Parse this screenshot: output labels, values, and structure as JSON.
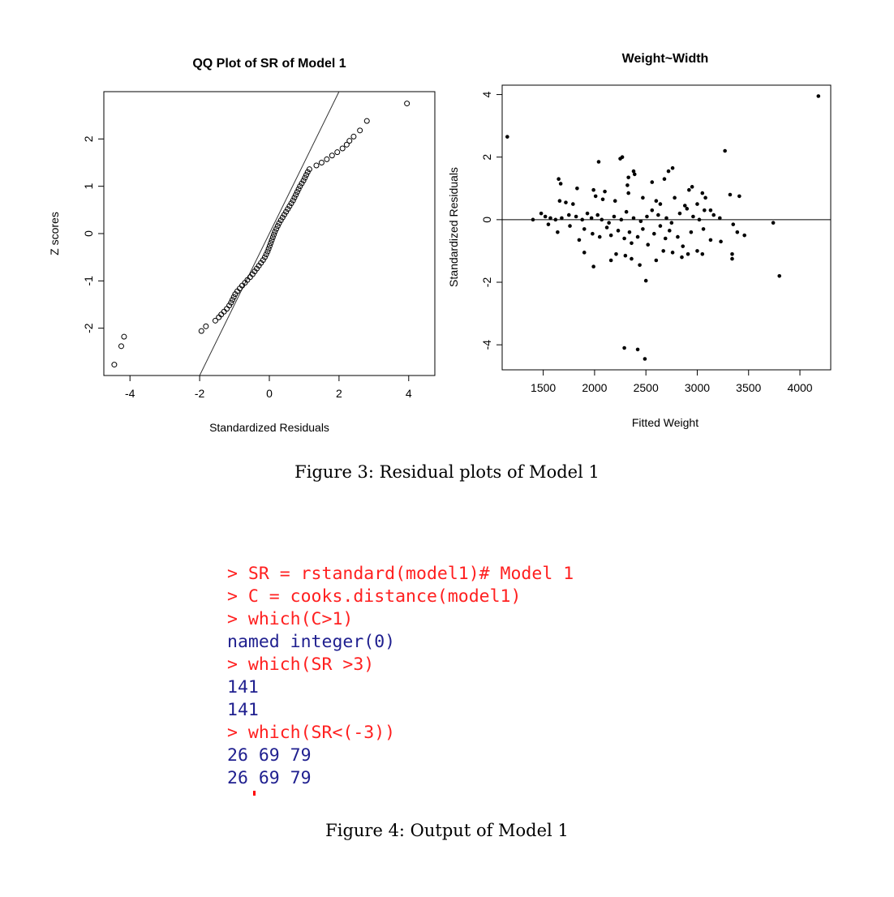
{
  "chart_data": [
    {
      "type": "scatter",
      "title": "QQ Plot of SR of Model 1",
      "xlabel": "Standardized Residuals",
      "ylabel": "Z scores",
      "xlim": [
        -4.75,
        4.75
      ],
      "ylim": [
        -3.0,
        3.0
      ],
      "xticks": [
        "-4",
        "-2",
        "0",
        "2",
        "4"
      ],
      "yticks": [
        "-2",
        "-1",
        "0",
        "1",
        "2"
      ],
      "marker": "open-circle",
      "reference_line": {
        "slope": 1.5,
        "intercept": 0
      },
      "points": [
        [
          -4.45,
          -2.77
        ],
        [
          -4.25,
          -2.38
        ],
        [
          -4.17,
          -2.18
        ],
        [
          -1.95,
          -2.06
        ],
        [
          -1.82,
          -1.96
        ],
        [
          -1.55,
          -1.84
        ],
        [
          -1.45,
          -1.77
        ],
        [
          -1.38,
          -1.71
        ],
        [
          -1.3,
          -1.65
        ],
        [
          -1.22,
          -1.59
        ],
        [
          -1.15,
          -1.52
        ],
        [
          -1.1,
          -1.46
        ],
        [
          -1.06,
          -1.4
        ],
        [
          -1.02,
          -1.34
        ],
        [
          -0.98,
          -1.28
        ],
        [
          -0.92,
          -1.22
        ],
        [
          -0.85,
          -1.16
        ],
        [
          -0.78,
          -1.1
        ],
        [
          -0.7,
          -1.04
        ],
        [
          -0.63,
          -0.98
        ],
        [
          -0.55,
          -0.92
        ],
        [
          -0.48,
          -0.86
        ],
        [
          -0.42,
          -0.8
        ],
        [
          -0.36,
          -0.74
        ],
        [
          -0.3,
          -0.68
        ],
        [
          -0.24,
          -0.62
        ],
        [
          -0.18,
          -0.56
        ],
        [
          -0.13,
          -0.5
        ],
        [
          -0.09,
          -0.44
        ],
        [
          -0.05,
          -0.38
        ],
        [
          -0.02,
          -0.32
        ],
        [
          0.01,
          -0.26
        ],
        [
          0.04,
          -0.2
        ],
        [
          0.07,
          -0.14
        ],
        [
          0.1,
          -0.08
        ],
        [
          0.13,
          -0.02
        ],
        [
          0.16,
          0.04
        ],
        [
          0.2,
          0.1
        ],
        [
          0.24,
          0.16
        ],
        [
          0.28,
          0.22
        ],
        [
          0.33,
          0.28
        ],
        [
          0.38,
          0.34
        ],
        [
          0.43,
          0.4
        ],
        [
          0.48,
          0.46
        ],
        [
          0.53,
          0.52
        ],
        [
          0.58,
          0.58
        ],
        [
          0.63,
          0.64
        ],
        [
          0.68,
          0.7
        ],
        [
          0.72,
          0.76
        ],
        [
          0.76,
          0.82
        ],
        [
          0.8,
          0.88
        ],
        [
          0.84,
          0.94
        ],
        [
          0.88,
          1.0
        ],
        [
          0.93,
          1.06
        ],
        [
          0.98,
          1.12
        ],
        [
          1.02,
          1.18
        ],
        [
          1.06,
          1.24
        ],
        [
          1.1,
          1.3
        ],
        [
          1.15,
          1.36
        ],
        [
          1.35,
          1.44
        ],
        [
          1.5,
          1.5
        ],
        [
          1.65,
          1.57
        ],
        [
          1.8,
          1.65
        ],
        [
          1.95,
          1.72
        ],
        [
          2.1,
          1.8
        ],
        [
          2.22,
          1.88
        ],
        [
          2.3,
          1.96
        ],
        [
          2.42,
          2.05
        ],
        [
          2.6,
          2.18
        ],
        [
          2.8,
          2.38
        ],
        [
          3.95,
          2.75
        ]
      ]
    },
    {
      "type": "scatter",
      "title": "Weight~Width",
      "xlabel": "Fitted Weight",
      "ylabel": "Standardized Residuals",
      "xlim": [
        1100,
        4300
      ],
      "ylim": [
        -4.8,
        4.3
      ],
      "xticks": [
        "1500",
        "2000",
        "2500",
        "3000",
        "3500",
        "4000"
      ],
      "yticks": [
        "-4",
        "-2",
        "0",
        "2",
        "4"
      ],
      "marker": "filled-dot",
      "reference_line": {
        "type": "horizontal",
        "y": 0
      },
      "points": [
        [
          1150,
          2.65
        ],
        [
          4180,
          3.95
        ],
        [
          3270,
          2.2
        ],
        [
          2040,
          1.85
        ],
        [
          2250,
          1.95
        ],
        [
          2270,
          2.0
        ],
        [
          2760,
          1.65
        ],
        [
          2720,
          1.55
        ],
        [
          2380,
          1.55
        ],
        [
          2330,
          1.35
        ],
        [
          2390,
          1.45
        ],
        [
          1650,
          1.3
        ],
        [
          1670,
          1.15
        ],
        [
          1830,
          1.0
        ],
        [
          1990,
          0.95
        ],
        [
          2100,
          0.9
        ],
        [
          2320,
          1.1
        ],
        [
          2560,
          1.2
        ],
        [
          2680,
          1.3
        ],
        [
          2950,
          1.05
        ],
        [
          2920,
          0.95
        ],
        [
          3050,
          0.85
        ],
        [
          3320,
          0.8
        ],
        [
          3410,
          0.75
        ],
        [
          1660,
          0.6
        ],
        [
          1720,
          0.55
        ],
        [
          1790,
          0.5
        ],
        [
          2010,
          0.75
        ],
        [
          2080,
          0.65
        ],
        [
          2200,
          0.6
        ],
        [
          2330,
          0.85
        ],
        [
          2470,
          0.7
        ],
        [
          2600,
          0.6
        ],
        [
          2640,
          0.5
        ],
        [
          2780,
          0.7
        ],
        [
          2880,
          0.45
        ],
        [
          3000,
          0.5
        ],
        [
          3080,
          0.7
        ],
        [
          3130,
          0.3
        ],
        [
          1400,
          0.0
        ],
        [
          1480,
          0.2
        ],
        [
          1520,
          0.1
        ],
        [
          1570,
          0.05
        ],
        [
          1620,
          0.0
        ],
        [
          1680,
          0.05
        ],
        [
          1750,
          0.15
        ],
        [
          1820,
          0.1
        ],
        [
          1880,
          0.0
        ],
        [
          1930,
          0.2
        ],
        [
          1970,
          0.05
        ],
        [
          2030,
          0.15
        ],
        [
          2070,
          0.0
        ],
        [
          2140,
          -0.1
        ],
        [
          2190,
          0.1
        ],
        [
          2260,
          0.0
        ],
        [
          2310,
          0.25
        ],
        [
          2380,
          0.05
        ],
        [
          2450,
          -0.05
        ],
        [
          2510,
          0.1
        ],
        [
          2560,
          0.3
        ],
        [
          2620,
          0.15
        ],
        [
          2700,
          0.05
        ],
        [
          2750,
          -0.1
        ],
        [
          2830,
          0.2
        ],
        [
          2900,
          0.35
        ],
        [
          2960,
          0.1
        ],
        [
          3020,
          0.0
        ],
        [
          3070,
          0.3
        ],
        [
          3160,
          0.15
        ],
        [
          3220,
          0.05
        ],
        [
          1550,
          -0.15
        ],
        [
          1640,
          -0.4
        ],
        [
          1760,
          -0.2
        ],
        [
          1850,
          -0.65
        ],
        [
          1900,
          -0.3
        ],
        [
          1980,
          -0.45
        ],
        [
          2050,
          -0.55
        ],
        [
          2120,
          -0.25
        ],
        [
          2160,
          -0.5
        ],
        [
          2230,
          -0.35
        ],
        [
          2290,
          -0.6
        ],
        [
          2340,
          -0.4
        ],
        [
          2360,
          -0.75
        ],
        [
          2420,
          -0.55
        ],
        [
          2470,
          -0.3
        ],
        [
          2520,
          -0.8
        ],
        [
          2580,
          -0.45
        ],
        [
          2640,
          -0.2
        ],
        [
          2690,
          -0.6
        ],
        [
          2730,
          -0.35
        ],
        [
          2810,
          -0.55
        ],
        [
          2860,
          -0.85
        ],
        [
          2940,
          -0.4
        ],
        [
          3000,
          -1.0
        ],
        [
          3060,
          -0.3
        ],
        [
          3130,
          -0.65
        ],
        [
          3230,
          -0.7
        ],
        [
          3350,
          -0.15
        ],
        [
          3390,
          -0.4
        ],
        [
          3460,
          -0.5
        ],
        [
          1900,
          -1.05
        ],
        [
          1990,
          -1.5
        ],
        [
          2160,
          -1.3
        ],
        [
          2210,
          -1.1
        ],
        [
          2300,
          -1.15
        ],
        [
          2360,
          -1.25
        ],
        [
          2440,
          -1.45
        ],
        [
          2500,
          -1.95
        ],
        [
          2600,
          -1.3
        ],
        [
          2670,
          -1.0
        ],
        [
          2760,
          -1.05
        ],
        [
          2850,
          -1.2
        ],
        [
          2910,
          -1.1
        ],
        [
          3050,
          -1.1
        ],
        [
          3340,
          -1.1
        ],
        [
          3340,
          -1.25
        ],
        [
          3740,
          -0.1
        ],
        [
          3800,
          -1.8
        ],
        [
          2290,
          -4.1
        ],
        [
          2420,
          -4.15
        ],
        [
          2490,
          -4.45
        ]
      ]
    }
  ],
  "captions": {
    "figure3": "Figure 3: Residual plots of Model 1",
    "figure4": "Figure 4: Output of Model 1"
  },
  "console": {
    "colors": {
      "command": "#ff1f1f",
      "output": "#1f1f8f"
    },
    "lines": [
      {
        "kind": "command",
        "text": "> SR = rstandard(model1)# Model 1"
      },
      {
        "kind": "command",
        "text": "> C = cooks.distance(model1)"
      },
      {
        "kind": "command",
        "text": "> which(C>1)"
      },
      {
        "kind": "output",
        "text": "named integer(0)"
      },
      {
        "kind": "command",
        "text": "> which(SR >3)"
      },
      {
        "kind": "output",
        "text": "141"
      },
      {
        "kind": "output",
        "text": "141"
      },
      {
        "kind": "command",
        "text": "> which(SR<(-3))"
      },
      {
        "kind": "output",
        "text": "26 69 79"
      },
      {
        "kind": "output",
        "text": "26 69 79"
      }
    ]
  }
}
